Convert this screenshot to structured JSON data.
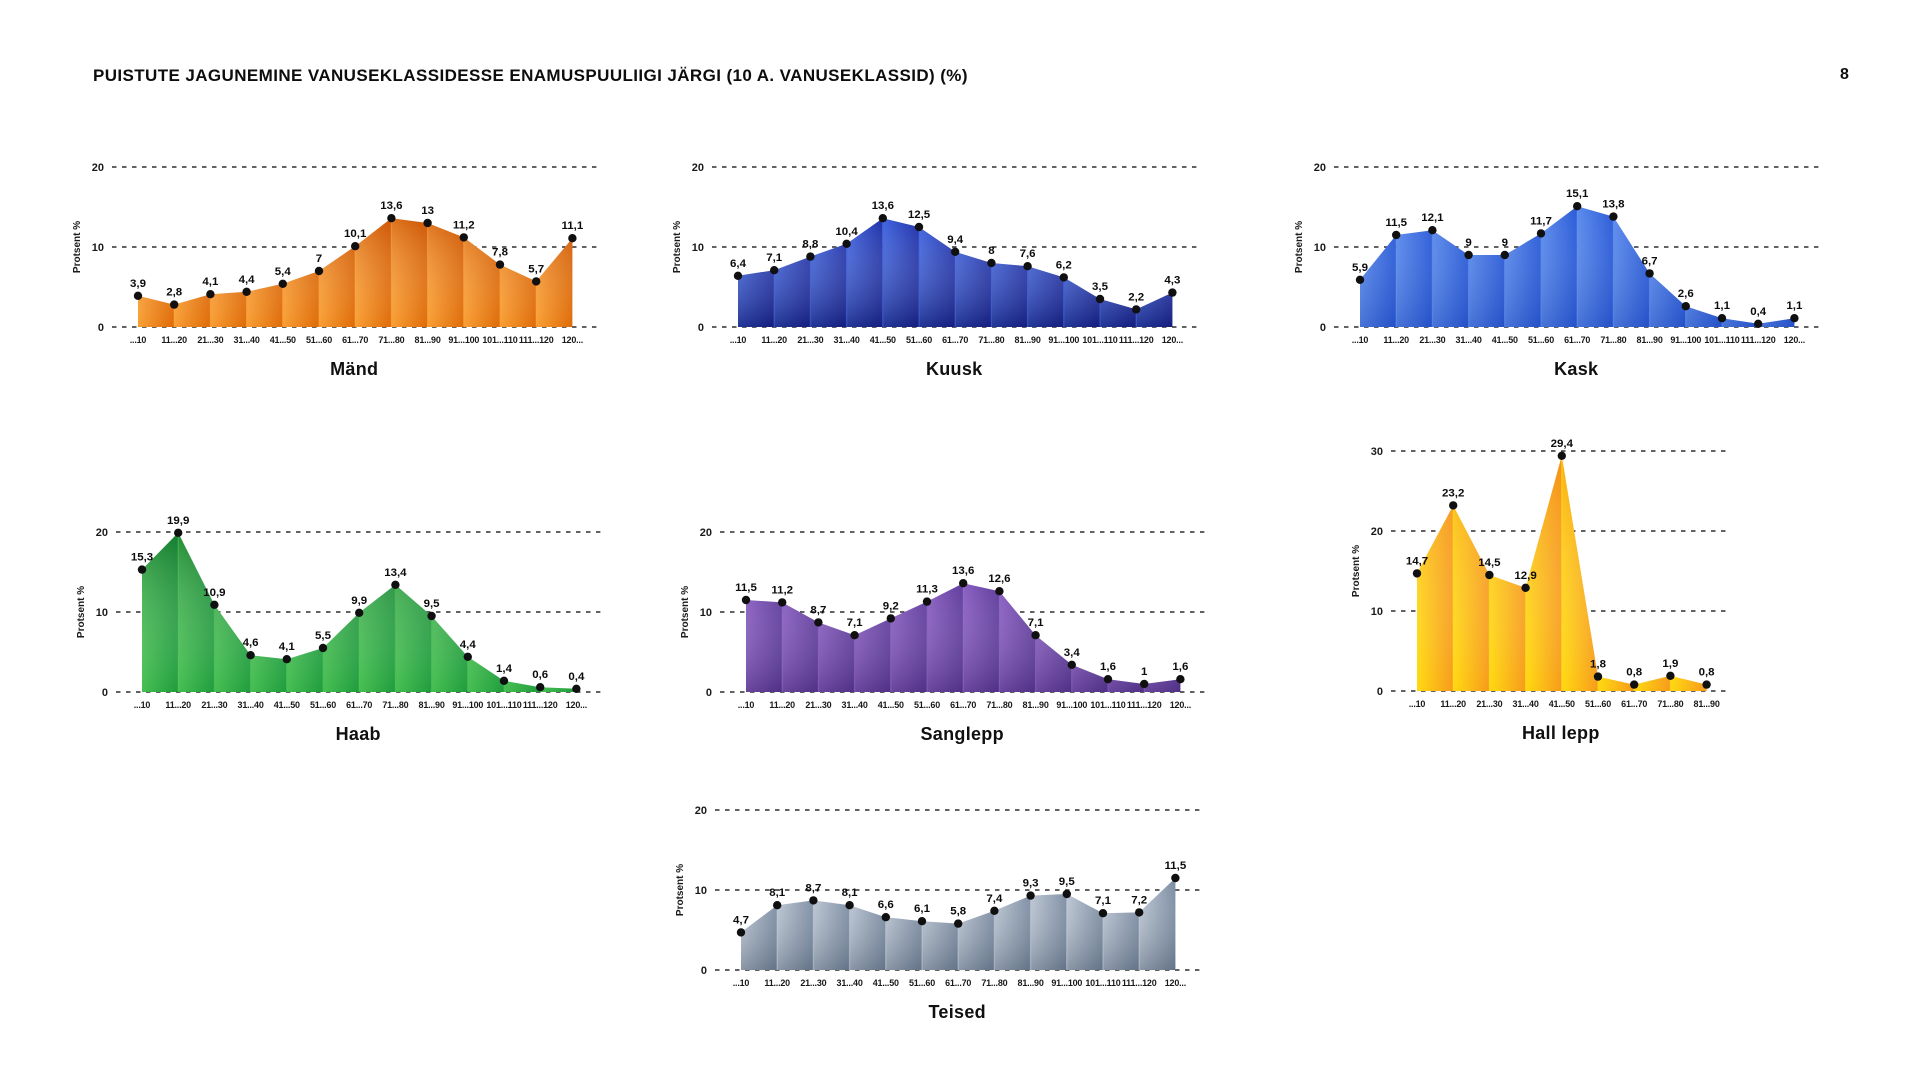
{
  "page": {
    "title": "PUISTUTE JAGUNEMINE VANUSEKLASSIDESSE ENAMUSPUULIIGI JÄRGI (10 A. VANUSEKLASSID) (%)",
    "page_number": "8"
  },
  "chart_data": [
    {
      "type": "area",
      "title": "Mänd",
      "ylabel": "Protsent %",
      "ylim": [
        0,
        20
      ],
      "yticks": [
        0,
        10,
        20
      ],
      "grid": "dashed",
      "legend": "none",
      "categories": [
        "...10",
        "11...20",
        "21...30",
        "31...40",
        "41...50",
        "51...60",
        "61...70",
        "71...80",
        "81...90",
        "91...100",
        "101...110",
        "111...120",
        "120..."
      ],
      "values": [
        3.9,
        2.8,
        4.1,
        4.4,
        5.4,
        7,
        10.1,
        13.6,
        13,
        11.2,
        7.8,
        5.7,
        11.1
      ],
      "labels": [
        "3,9",
        "2,8",
        "4,1",
        "4,4",
        "5,4",
        "7",
        "10,1",
        "13,6",
        "13",
        "11,2",
        "7,8",
        "5,7",
        "11,1"
      ],
      "palette": {
        "light": "#F99E33",
        "dark": "#DE6A05",
        "shade": "rgba(180,55,0,0.42)",
        "shade_side": "top"
      }
    },
    {
      "type": "area",
      "title": "Kuusk",
      "ylabel": "Protsent %",
      "ylim": [
        0,
        20
      ],
      "yticks": [
        0,
        10,
        20
      ],
      "grid": "dashed",
      "legend": "none",
      "categories": [
        "...10",
        "11...20",
        "21...30",
        "31...40",
        "41...50",
        "51...60",
        "61...70",
        "71...80",
        "81...90",
        "91...100",
        "101...110",
        "111...120",
        "120..."
      ],
      "values": [
        6.4,
        7.1,
        8.8,
        10.4,
        13.6,
        12.5,
        9.4,
        8,
        7.6,
        6.2,
        3.5,
        2.2,
        4.3
      ],
      "labels": [
        "6,4",
        "7,1",
        "8,8",
        "10,4",
        "13,6",
        "12,5",
        "9,4",
        "8",
        "7,6",
        "6,2",
        "3,5",
        "2,2",
        "4,3"
      ],
      "palette": {
        "light": "#3E63DE",
        "dark": "#1E2FA8",
        "shade": "rgba(8,10,80,0.5)",
        "shade_side": "bottom"
      }
    },
    {
      "type": "area",
      "title": "Kask",
      "ylabel": "Protsent %",
      "ylim": [
        0,
        20
      ],
      "yticks": [
        0,
        10,
        20
      ],
      "grid": "dashed",
      "legend": "none",
      "categories": [
        "...10",
        "11...20",
        "21...30",
        "31...40",
        "41...50",
        "51...60",
        "61...70",
        "71...80",
        "81...90",
        "91...100",
        "101...110",
        "111...120",
        "120..."
      ],
      "values": [
        5.9,
        11.5,
        12.1,
        9,
        9,
        11.7,
        15.1,
        13.8,
        6.7,
        2.6,
        1.1,
        0.4,
        1.1
      ],
      "labels": [
        "5,9",
        "11,5",
        "12,1",
        "9",
        "9",
        "11,7",
        "15,1",
        "13,8",
        "6,7",
        "2,6",
        "1,1",
        "0,4",
        "1,1"
      ],
      "palette": {
        "light": "#5B8BEC",
        "dark": "#2A5BD8",
        "shade": "rgba(15,45,150,0.25)",
        "shade_side": "bottom"
      }
    },
    {
      "type": "area",
      "title": "Haab",
      "ylabel": "Protsent %",
      "ylim": [
        0,
        20
      ],
      "yticks": [
        0,
        10,
        20
      ],
      "grid": "dashed",
      "legend": "none",
      "categories": [
        "...10",
        "11...20",
        "21...30",
        "31...40",
        "41...50",
        "51...60",
        "61...70",
        "71...80",
        "81...90",
        "91...100",
        "101...110",
        "111...120",
        "120..."
      ],
      "values": [
        15.3,
        19.9,
        10.9,
        4.6,
        4.1,
        5.5,
        9.9,
        13.4,
        9.5,
        4.4,
        1.4,
        0.6,
        0.4
      ],
      "labels": [
        "15,3",
        "19,9",
        "10,9",
        "4,6",
        "4,1",
        "5,5",
        "9,9",
        "13,4",
        "9,5",
        "4,4",
        "1,4",
        "0,6",
        "0,4"
      ],
      "palette": {
        "light": "#45BE50",
        "dark": "#1E9C3C",
        "shade": "rgba(4,90,30,0.5)",
        "shade_side": "top"
      }
    },
    {
      "type": "area",
      "title": "Sanglepp",
      "ylabel": "Protsent %",
      "ylim": [
        0,
        20
      ],
      "yticks": [
        0,
        10,
        20
      ],
      "grid": "dashed",
      "legend": "none",
      "categories": [
        "...10",
        "11...20",
        "21...30",
        "31...40",
        "41...50",
        "51...60",
        "61...70",
        "71...80",
        "81...90",
        "91...100",
        "101...110",
        "111...120",
        "120..."
      ],
      "values": [
        11.5,
        11.2,
        8.7,
        7.1,
        9.2,
        11.3,
        13.6,
        12.6,
        7.1,
        3.4,
        1.6,
        1,
        1.6
      ],
      "labels": [
        "11,5",
        "11,2",
        "8,7",
        "7,1",
        "9,2",
        "11,3",
        "13,6",
        "12,6",
        "7,1",
        "3,4",
        "1,6",
        "1",
        "1,6"
      ],
      "palette": {
        "light": "#8A5FC2",
        "dark": "#5F3D9C",
        "shade": "rgba(45,22,88,0.35)",
        "shade_side": "bottom"
      }
    },
    {
      "type": "area",
      "title": "Hall lepp",
      "ylabel": "Protsent %",
      "ylim": [
        0,
        30
      ],
      "yticks": [
        0,
        10,
        20,
        30
      ],
      "grid": "dashed",
      "legend": "none",
      "categories": [
        "...10",
        "11...20",
        "21...30",
        "31...40",
        "41...50",
        "51...60",
        "61...70",
        "71...80",
        "81...90"
      ],
      "values": [
        14.7,
        23.2,
        14.5,
        12.9,
        29.4,
        1.8,
        0.8,
        1.9,
        0.8
      ],
      "labels": [
        "14,7",
        "23,2",
        "14,5",
        "12,9",
        "29,4",
        "1,8",
        "0,8",
        "1,9",
        "0,8"
      ],
      "palette": {
        "light": "#FFD90F",
        "dark": "#F79A1A",
        "shade": "rgba(243,130,10,0.45)",
        "shade_side": "top"
      }
    },
    {
      "type": "area",
      "title": "Teised",
      "ylabel": "Protsent %",
      "ylim": [
        0,
        20
      ],
      "yticks": [
        0,
        10,
        20
      ],
      "grid": "dashed",
      "legend": "none",
      "categories": [
        "...10",
        "11...20",
        "21...30",
        "31...40",
        "41...50",
        "51...60",
        "61...70",
        "71...80",
        "81...90",
        "91...100",
        "101...110",
        "111...120",
        "120..."
      ],
      "values": [
        4.7,
        8.1,
        8.7,
        8.1,
        6.6,
        6.1,
        5.8,
        7.4,
        9.3,
        9.5,
        7.1,
        7.2,
        11.5
      ],
      "labels": [
        "4,7",
        "8,1",
        "8,7",
        "8,1",
        "6,6",
        "6,1",
        "5,8",
        "7,4",
        "9,3",
        "9,5",
        "7,1",
        "7,2",
        "11,5"
      ],
      "palette": {
        "light": "#BBC5D3",
        "dark": "#7A8BA1",
        "shade": "rgba(59,73,92,0.38)",
        "shade_side": "bottom"
      }
    }
  ]
}
